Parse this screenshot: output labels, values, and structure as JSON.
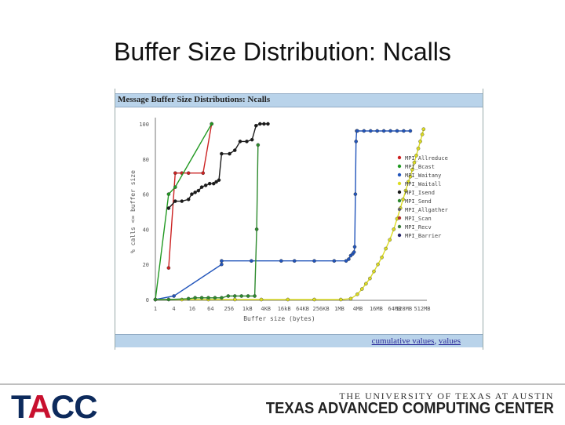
{
  "slide": {
    "title": "Buffer Size Distribution: Ncalls"
  },
  "panel": {
    "header": "Message Buffer Size Distributions: Ncalls",
    "footer_links": [
      "cumulative values",
      "values"
    ],
    "footer_separator": ","
  },
  "footer": {
    "logo_parts": [
      "T",
      "A",
      "CC"
    ],
    "university": "THE UNIVERSITY OF TEXAS AT AUSTIN",
    "center": "TEXAS ADVANCED COMPUTING CENTER",
    "colors": {
      "navy": "#0d2a5c",
      "red": "#c8102e"
    }
  },
  "chart_data": {
    "type": "line",
    "xlabel": "Buffer size (bytes)",
    "ylabel": "% calls <= buffer size",
    "x_scale": "log2",
    "x_ticks": [
      "1",
      "4",
      "16",
      "64",
      "256",
      "1kB",
      "4KB",
      "16kB",
      "64KB",
      "256KB",
      "1MB",
      "4MB",
      "16MB",
      "64MB",
      "128MB",
      "512MB"
    ],
    "y_ticks": [
      "0",
      "20",
      "40",
      "60",
      "80",
      "100"
    ],
    "ylim": [
      0,
      100
    ],
    "grid": false,
    "legend_position": "right",
    "series": [
      {
        "name": "MPI_Allreduce",
        "color": "#cc2222",
        "marker": "circle",
        "points": [
          [
            2,
            18
          ],
          [
            3,
            72
          ],
          [
            4,
            72
          ],
          [
            5,
            72
          ],
          [
            7.2,
            72
          ],
          [
            8.5,
            100
          ]
        ]
      },
      {
        "name": "MPI_Bcast",
        "color": "#229922",
        "marker": "circle",
        "points": [
          [
            0,
            0
          ],
          [
            2,
            60
          ],
          [
            3,
            64
          ],
          [
            8.5,
            100
          ]
        ]
      },
      {
        "name": "MPI_Waitany",
        "color": "#2255bb",
        "marker": "circle",
        "points": [
          [
            0,
            0
          ],
          [
            2.8,
            2
          ],
          [
            10,
            20
          ],
          [
            10,
            22
          ],
          [
            14.5,
            22
          ],
          [
            19,
            22
          ],
          [
            21,
            22
          ],
          [
            24,
            22
          ],
          [
            27,
            22
          ],
          [
            28.8,
            22
          ],
          [
            29.2,
            23
          ],
          [
            29.5,
            25
          ],
          [
            29.8,
            26
          ],
          [
            30,
            27
          ],
          [
            30.1,
            30
          ],
          [
            30.2,
            60
          ],
          [
            30.3,
            90
          ],
          [
            30.4,
            96
          ],
          [
            30.5,
            96
          ],
          [
            31.5,
            96
          ],
          [
            32.5,
            96
          ],
          [
            33.5,
            96
          ],
          [
            34.5,
            96
          ],
          [
            35.5,
            96
          ],
          [
            36.5,
            96
          ],
          [
            37.5,
            96
          ],
          [
            38.5,
            96
          ]
        ]
      },
      {
        "name": "MPI_Waitall",
        "color": "#dddd22",
        "marker": "circle",
        "points": [
          [
            0,
            0
          ],
          [
            4,
            0
          ],
          [
            8,
            0
          ],
          [
            12,
            0
          ],
          [
            16,
            0
          ],
          [
            20,
            0
          ],
          [
            24,
            0
          ],
          [
            28,
            0
          ],
          [
            29.5,
            0.5
          ],
          [
            30.5,
            3
          ],
          [
            31.2,
            6
          ],
          [
            31.8,
            9
          ],
          [
            32.4,
            12
          ],
          [
            33,
            16
          ],
          [
            33.6,
            20
          ],
          [
            34.2,
            24
          ],
          [
            34.8,
            29
          ],
          [
            35.4,
            34
          ],
          [
            36,
            40
          ],
          [
            36.5,
            46
          ],
          [
            37,
            52
          ],
          [
            37.4,
            57
          ],
          [
            37.8,
            62
          ],
          [
            38.2,
            67
          ],
          [
            38.5,
            70
          ],
          [
            38.8,
            74
          ],
          [
            39.1,
            78
          ],
          [
            39.4,
            82
          ],
          [
            39.7,
            86
          ],
          [
            40,
            90
          ],
          [
            40.3,
            94
          ],
          [
            40.5,
            97
          ]
        ]
      },
      {
        "name": "MPI_Isend",
        "color": "#1a1a1a",
        "marker": "circle",
        "points": [
          [
            2,
            52
          ],
          [
            3,
            56
          ],
          [
            4,
            56
          ],
          [
            5,
            57
          ],
          [
            5.5,
            60
          ],
          [
            6,
            61
          ],
          [
            6.5,
            62
          ],
          [
            7,
            64
          ],
          [
            7.6,
            65
          ],
          [
            8.2,
            66
          ],
          [
            8.8,
            66
          ],
          [
            9.2,
            67
          ],
          [
            9.6,
            68
          ],
          [
            10,
            83
          ],
          [
            11.2,
            83
          ],
          [
            12,
            85
          ],
          [
            12.8,
            90
          ],
          [
            13.8,
            90
          ],
          [
            14.6,
            91
          ],
          [
            15.2,
            99
          ],
          [
            15.8,
            100
          ],
          [
            16.4,
            100
          ],
          [
            17,
            100
          ]
        ]
      },
      {
        "name": "MPI_Send",
        "color": "#2d8a2d",
        "marker": "circle",
        "points": [
          [
            0,
            0
          ],
          [
            2,
            0
          ],
          [
            5,
            0.5
          ],
          [
            6,
            1
          ],
          [
            7,
            1
          ],
          [
            8,
            1
          ],
          [
            9,
            1
          ],
          [
            10,
            1
          ],
          [
            11,
            2
          ],
          [
            12,
            2
          ],
          [
            13,
            2
          ],
          [
            14,
            2
          ],
          [
            15,
            2
          ],
          [
            15.3,
            40
          ],
          [
            15.5,
            88
          ]
        ]
      },
      {
        "name": "MPI_Allgather",
        "color": "#666666",
        "marker": "circle",
        "points": []
      },
      {
        "name": "MPI_Scan",
        "color": "#aa3333",
        "marker": "circle",
        "points": []
      },
      {
        "name": "MPI_Recv",
        "color": "#3a7a3a",
        "marker": "circle",
        "points": []
      },
      {
        "name": "MPI_Barrier",
        "color": "#222266",
        "marker": "circle",
        "points": []
      }
    ]
  }
}
